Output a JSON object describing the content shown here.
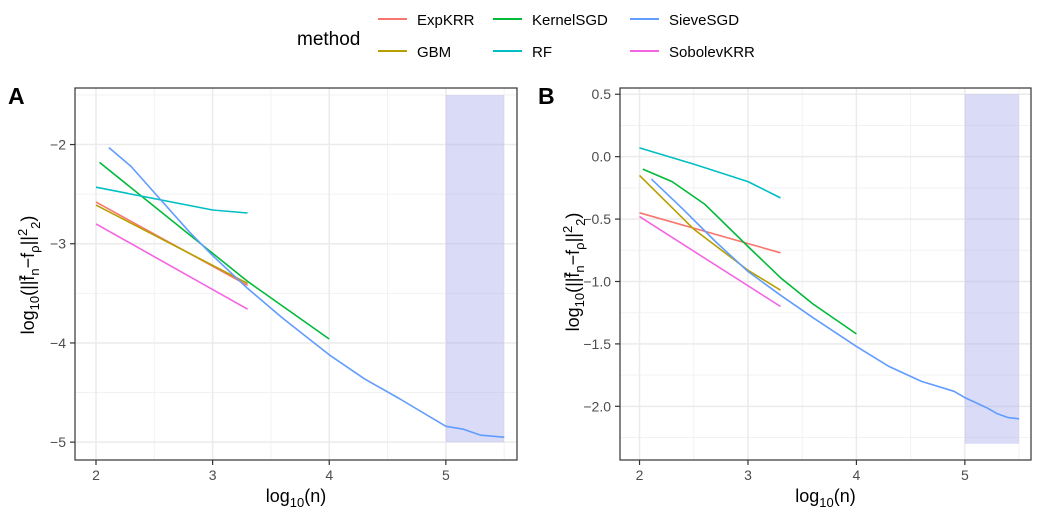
{
  "legend": {
    "title": "method",
    "items": [
      {
        "label": "ExpKRR",
        "color": "#F8766D"
      },
      {
        "label": "GBM",
        "color": "#B79F00"
      },
      {
        "label": "KernelSGD",
        "color": "#00BA38"
      },
      {
        "label": "RF",
        "color": "#00BFC4"
      },
      {
        "label": "SieveSGD",
        "color": "#619CFF"
      },
      {
        "label": "SobolevKRR",
        "color": "#F564E3"
      }
    ]
  },
  "chart_data": [
    {
      "type": "line",
      "panel_label": "A",
      "xlabel": "log10(n)",
      "ylabel": "log10(||f̄n−fρ||²2)",
      "xlim": [
        1.82,
        5.61
      ],
      "ylim": [
        -5.18,
        -1.43
      ],
      "x_ticks": [
        2,
        3,
        4,
        5
      ],
      "y_ticks": [
        -5,
        -4,
        -3,
        -2
      ],
      "grid": true,
      "shaded_region": {
        "x": [
          5.0,
          5.5
        ],
        "y": [
          -5.0,
          -1.5
        ],
        "color": "#aeb0ee"
      },
      "series": [
        {
          "name": "ExpKRR",
          "x": [
            2.0,
            3.3
          ],
          "y": [
            -2.58,
            -3.42
          ]
        },
        {
          "name": "GBM",
          "x": [
            2.0,
            3.3
          ],
          "y": [
            -2.61,
            -3.4
          ]
        },
        {
          "name": "KernelSGD",
          "x": [
            2.03,
            3.3,
            4.0
          ],
          "y": [
            -2.18,
            -3.38,
            -3.96
          ]
        },
        {
          "name": "RF",
          "x": [
            2.0,
            3.0,
            3.3
          ],
          "y": [
            -2.43,
            -2.66,
            -2.69
          ]
        },
        {
          "name": "SieveSGD",
          "x": [
            2.11,
            2.3,
            2.55,
            2.8,
            3.0,
            3.3,
            3.6,
            4.0,
            4.3,
            4.6,
            5.0,
            5.15,
            5.3,
            5.5
          ],
          "y": [
            -2.03,
            -2.22,
            -2.55,
            -2.88,
            -3.12,
            -3.45,
            -3.75,
            -4.12,
            -4.36,
            -4.56,
            -4.84,
            -4.87,
            -4.93,
            -4.95
          ]
        },
        {
          "name": "SobolevKRR",
          "x": [
            2.0,
            3.3
          ],
          "y": [
            -2.8,
            -3.66
          ]
        }
      ]
    },
    {
      "type": "line",
      "panel_label": "B",
      "xlabel": "log10(n)",
      "ylabel": "log10(||f̄n−fρ||²2)",
      "xlim": [
        1.82,
        5.61
      ],
      "ylim": [
        -2.43,
        0.55
      ],
      "x_ticks": [
        2,
        3,
        4,
        5
      ],
      "y_ticks": [
        -2.0,
        -1.5,
        -1.0,
        -0.5,
        0.0,
        0.5
      ],
      "y_tick_labels": [
        "-2.0",
        "-1.5",
        "-1.0",
        "-0.5",
        "0.0",
        "0.5"
      ],
      "grid": true,
      "shaded_region": {
        "x": [
          5.0,
          5.5
        ],
        "y": [
          -2.3,
          0.5
        ],
        "color": "#aeb0ee"
      },
      "series": [
        {
          "name": "ExpKRR",
          "x": [
            2.0,
            3.3
          ],
          "y": [
            -0.45,
            -0.77
          ]
        },
        {
          "name": "GBM",
          "x": [
            2.0,
            2.5,
            3.0,
            3.3
          ],
          "y": [
            -0.15,
            -0.58,
            -0.91,
            -1.07
          ]
        },
        {
          "name": "KernelSGD",
          "x": [
            2.03,
            2.3,
            2.6,
            3.0,
            3.3,
            3.6,
            4.0
          ],
          "y": [
            -0.1,
            -0.2,
            -0.38,
            -0.72,
            -0.97,
            -1.18,
            -1.42
          ]
        },
        {
          "name": "RF",
          "x": [
            2.0,
            2.5,
            3.0,
            3.3
          ],
          "y": [
            0.07,
            -0.06,
            -0.2,
            -0.33
          ]
        },
        {
          "name": "SieveSGD",
          "x": [
            2.11,
            2.4,
            2.7,
            3.0,
            3.3,
            3.6,
            4.0,
            4.3,
            4.6,
            4.9,
            5.0,
            5.2,
            5.3,
            5.4,
            5.5
          ],
          "y": [
            -0.18,
            -0.42,
            -0.68,
            -0.92,
            -1.11,
            -1.29,
            -1.52,
            -1.68,
            -1.8,
            -1.88,
            -1.93,
            -2.01,
            -2.06,
            -2.09,
            -2.1
          ]
        },
        {
          "name": "SobolevKRR",
          "x": [
            2.0,
            3.3
          ],
          "y": [
            -0.48,
            -1.2
          ]
        }
      ]
    }
  ]
}
